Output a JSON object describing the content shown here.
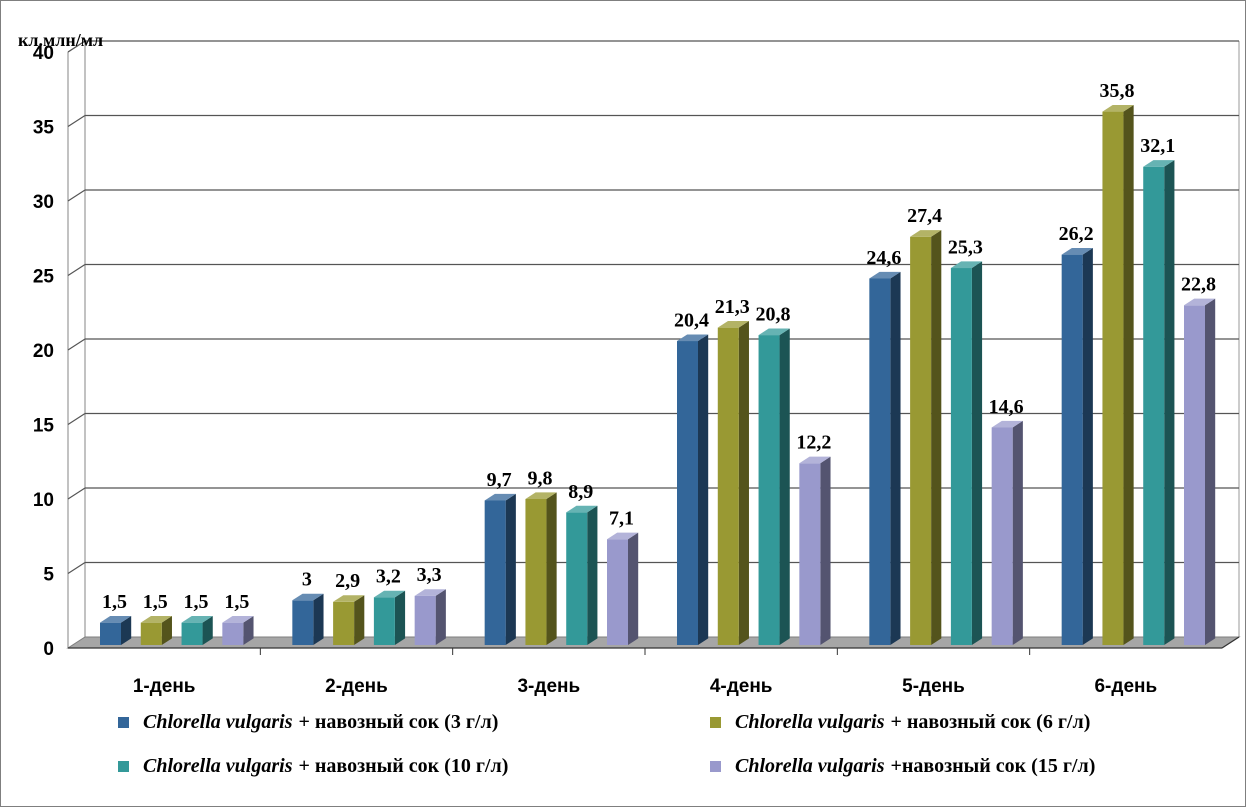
{
  "chart_data": {
    "type": "bar",
    "ylabel": "кл.млн/мл",
    "ylim": [
      0,
      40
    ],
    "yticks": [
      0,
      5,
      10,
      15,
      20,
      25,
      30,
      35,
      40
    ],
    "grid": true,
    "legend_position": "bottom",
    "categories": [
      "1-день",
      "2-день",
      "3-день",
      "4-день",
      "5-день",
      "6-день"
    ],
    "series": [
      {
        "name": "Chlorella vulgaris + навозный сок (3 г/л)",
        "species": "Chlorella vulgaris",
        "rest": "+ навозный сок (3 г/л)",
        "color": "#336699",
        "values": [
          1.5,
          3,
          9.7,
          20.4,
          24.6,
          26.2
        ],
        "labels": [
          "1,5",
          "3",
          "9,7",
          "20,4",
          "24,6",
          "26,2"
        ]
      },
      {
        "name": "Chlorella vulgaris + навозный сок (6 г/л)",
        "species": "Chlorella vulgaris",
        "rest": "+ навозный сок (6 г/л)",
        "color": "#999933",
        "values": [
          1.5,
          2.9,
          9.8,
          21.3,
          27.4,
          35.8
        ],
        "labels": [
          "1,5",
          "2,9",
          "9,8",
          "21,3",
          "27,4",
          "35,8"
        ]
      },
      {
        "name": "Chlorella vulgaris + навозный сок (10 г/л)",
        "species": "Chlorella vulgaris",
        "rest": "+ навозный сок (10 г/л)",
        "color": "#339999",
        "values": [
          1.5,
          3.2,
          8.9,
          20.8,
          25.3,
          32.1
        ],
        "labels": [
          "1,5",
          "3,2",
          "8,9",
          "20,8",
          "25,3",
          "32,1"
        ]
      },
      {
        "name": "Chlorella vulgaris +навозный сок (15 г/л)",
        "species": "Chlorella vulgaris",
        "rest": "+навозный сок (15 г/л)",
        "color": "#9999cc",
        "values": [
          1.5,
          3.3,
          7.1,
          12.2,
          14.6,
          22.8
        ],
        "labels": [
          "1,5",
          "3,3",
          "7,1",
          "12,2",
          "14,6",
          "22,8"
        ]
      }
    ]
  }
}
